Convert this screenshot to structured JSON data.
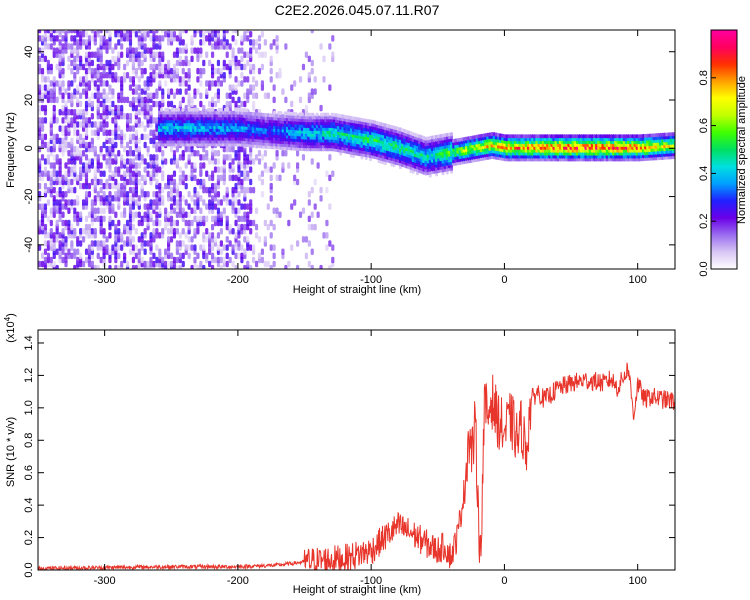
{
  "figure_title": "C2E2.2026.045.07.11.R07",
  "chart_data": [
    {
      "type": "heatmap",
      "name": "spectrogram",
      "xlabel": "Height of straight line (km)",
      "ylabel": "Frequency (Hz)",
      "xlim": [
        -350,
        128
      ],
      "ylim": [
        -50,
        49
      ],
      "xticks": [
        -300,
        -200,
        -100,
        0,
        100
      ],
      "yticks": [
        -40,
        -20,
        0,
        20,
        40
      ],
      "grid": false,
      "colorbar": {
        "label": "Normalized spectral amplitude",
        "range": [
          0,
          1
        ],
        "ticks": [
          0.0,
          0.2,
          0.4,
          0.6,
          0.8
        ],
        "colormap": [
          "#ffffff",
          "#d8c6f4",
          "#9a6cf0",
          "#6a00e8",
          "#2020ff",
          "#00a0ff",
          "#00e0e0",
          "#00e060",
          "#40ff00",
          "#c0ff00",
          "#ffff00",
          "#ffa000",
          "#ff3000",
          "#ff0060",
          "#ff00a0"
        ]
      },
      "ridge": {
        "x": [
          -260,
          -200,
          -180,
          -150,
          -130,
          -100,
          -80,
          -60,
          -50,
          -40,
          -30,
          -20,
          -10,
          0,
          20,
          50,
          80,
          100,
          128
        ],
        "y": [
          8,
          8,
          7,
          6,
          6,
          3,
          0,
          -4,
          -3,
          -2,
          -1,
          0,
          1,
          0,
          0,
          0,
          0,
          0,
          1
        ],
        "amplitude": [
          0.45,
          0.4,
          0.35,
          0.45,
          0.5,
          0.55,
          0.55,
          0.5,
          0.55,
          0.6,
          0.7,
          0.75,
          0.8,
          0.85,
          0.9,
          0.95,
          0.95,
          0.9,
          0.7
        ]
      }
    },
    {
      "type": "line",
      "name": "snr",
      "xlabel": "Height of straight line (km)",
      "ylabel": "SNR (10 * v/v)",
      "yscale_label": "(x10",
      "yscale_exponent": "4",
      "yscale_close": ")",
      "xlim": [
        -350,
        128
      ],
      "ylim": [
        0,
        1.48
      ],
      "xticks": [
        -300,
        -200,
        -100,
        0,
        100
      ],
      "yticks": [
        0.0,
        0.2,
        0.4,
        0.6,
        0.8,
        1.0,
        1.2,
        1.4
      ],
      "grid": false,
      "color": "#e8352b",
      "series": [
        {
          "x": [
            -350,
            -300,
            -250,
            -200,
            -170,
            -150,
            -120,
            -100,
            -90,
            -80,
            -70,
            -60,
            -50,
            -45,
            -40,
            -35,
            -30,
            -27,
            -24,
            -22,
            -20,
            -18,
            -15,
            -12,
            -10,
            -6,
            0,
            5,
            10,
            13,
            16,
            20,
            25,
            30,
            40,
            50,
            60,
            70,
            75,
            80,
            85,
            90,
            93,
            95,
            97,
            100,
            105,
            110,
            120,
            128
          ],
          "y": [
            0.01,
            0.015,
            0.02,
            0.02,
            0.03,
            0.05,
            0.07,
            0.12,
            0.2,
            0.27,
            0.23,
            0.17,
            0.12,
            0.15,
            0.08,
            0.22,
            0.5,
            0.82,
            0.72,
            0.9,
            0.5,
            0.05,
            1.0,
            0.95,
            1.07,
            0.95,
            0.85,
            0.93,
            0.8,
            0.9,
            0.72,
            1.05,
            1.1,
            1.05,
            1.12,
            1.15,
            1.17,
            1.16,
            1.15,
            1.18,
            1.12,
            1.2,
            1.25,
            1.1,
            0.95,
            1.15,
            1.05,
            1.07,
            1.05,
            1.04
          ]
        }
      ]
    }
  ]
}
